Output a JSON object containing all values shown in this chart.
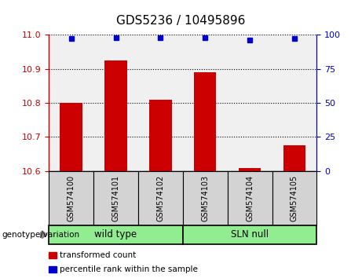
{
  "title": "GDS5236 / 10495896",
  "samples": [
    "GSM574100",
    "GSM574101",
    "GSM574102",
    "GSM574103",
    "GSM574104",
    "GSM574105"
  ],
  "transformed_counts": [
    10.8,
    10.925,
    10.81,
    10.89,
    10.608,
    10.675
  ],
  "percentile_ranks": [
    97,
    98,
    98,
    98,
    96,
    97
  ],
  "ylim_left": [
    10.6,
    11.0
  ],
  "ylim_right": [
    0,
    100
  ],
  "yticks_left": [
    10.6,
    10.7,
    10.8,
    10.9,
    11.0
  ],
  "yticks_right": [
    0,
    25,
    50,
    75,
    100
  ],
  "bar_color": "#CC0000",
  "dot_color": "#0000CC",
  "plot_bg": "#f0f0f0",
  "sample_box_bg": "#d3d3d3",
  "group_box_bg": "#90EE90",
  "left_axis_color": "#CC0000",
  "right_axis_color": "#0000CC",
  "wild_type_range": [
    0,
    2
  ],
  "sln_null_range": [
    3,
    5
  ],
  "wild_type_label": "wild type",
  "sln_null_label": "SLN null",
  "genotype_label": "genotype/variation",
  "legend_items": [
    {
      "label": "transformed count",
      "color": "#CC0000"
    },
    {
      "label": "percentile rank within the sample",
      "color": "#0000CC"
    }
  ]
}
